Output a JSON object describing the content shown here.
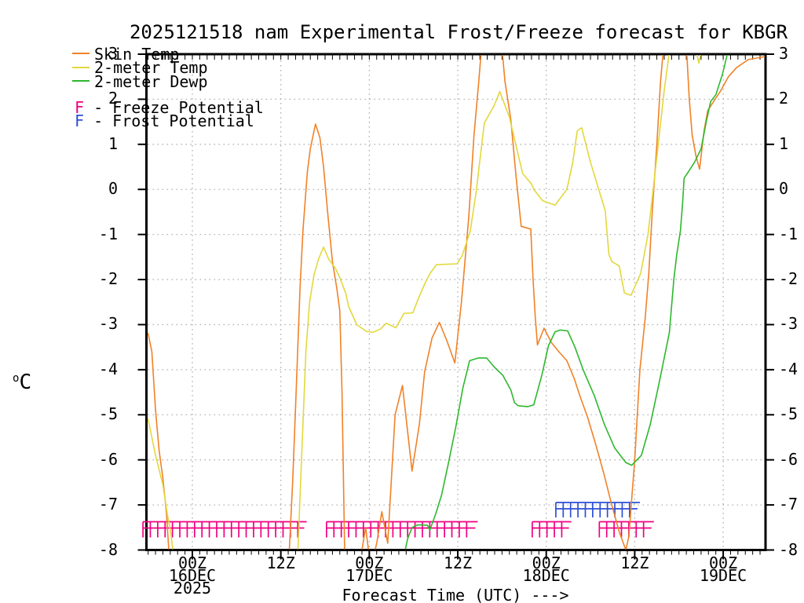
{
  "title": "2025121518 nam Experimental Frost/Freeze forecast for KBGR",
  "y_axis": {
    "unit_sup": "o",
    "unit_main": "C",
    "ticks": [
      3,
      2,
      1,
      0,
      -1,
      -2,
      -3,
      -4,
      -5,
      -6,
      -7,
      -8
    ]
  },
  "x_axis": {
    "label": "Forecast Time (UTC) --->",
    "ticks": [
      {
        "hours": 0,
        "lines": [
          "00Z",
          "16DEC",
          "2025"
        ]
      },
      {
        "hours": 12,
        "lines": [
          "12Z"
        ]
      },
      {
        "hours": 24,
        "lines": [
          "00Z",
          "17DEC"
        ]
      },
      {
        "hours": 36,
        "lines": [
          "12Z"
        ]
      },
      {
        "hours": 48,
        "lines": [
          "00Z",
          "18DEC"
        ]
      },
      {
        "hours": 60,
        "lines": [
          "12Z"
        ]
      },
      {
        "hours": 72,
        "lines": [
          "00Z",
          "19DEC"
        ]
      }
    ]
  },
  "legend": {
    "line_items": [
      {
        "key": "skin",
        "label": "Skin Temp"
      },
      {
        "key": "temp2m",
        "label": "2-meter Temp"
      },
      {
        "key": "dewp",
        "label": "2-meter Dewp"
      }
    ],
    "marker_items": [
      {
        "key": "freeze",
        "marker": "F",
        "label": " - Freeze Potential"
      },
      {
        "key": "frost",
        "marker": "F",
        "label": " - Frost Potential"
      }
    ]
  },
  "colors": {
    "skin": "#f08228",
    "temp2m": "#e2d83c",
    "dewp": "#2eb82e",
    "freeze": "#f00082",
    "frost": "#2e4fd6",
    "grid": "#b2b2b2",
    "frame": "#000000"
  },
  "chart_data": {
    "type": "line",
    "title": "2025121518 nam Experimental Frost/Freeze forecast for KBGR",
    "xlabel": "Forecast Time (UTC) --->",
    "ylabel": "oC",
    "x_unit": "hours after 00Z 16DEC2025",
    "x_range": [
      -6.2,
      77.7
    ],
    "y_range": [
      -8,
      3
    ],
    "grid": "dotted",
    "y_gridlines": [
      2,
      1,
      0,
      -1,
      -2,
      -3,
      -4,
      -5,
      -6,
      -7
    ],
    "x_gridlines_hours": [
      0,
      12,
      24,
      36,
      48,
      60,
      72
    ],
    "series": [
      {
        "name": "Skin Temp",
        "color_key": "skin",
        "points": [
          [
            -6,
            -3.2
          ],
          [
            -5.5,
            -3.6
          ],
          [
            -5,
            -4.9
          ],
          [
            -4.5,
            -5.8
          ],
          [
            -4,
            -6.4
          ],
          [
            -3.5,
            -7.2
          ],
          [
            -3,
            -8.5
          ],
          [
            13,
            -8.5
          ],
          [
            13.6,
            -6.5
          ],
          [
            14,
            -4.8
          ],
          [
            14.6,
            -2.2
          ],
          [
            15,
            -0.9
          ],
          [
            15.6,
            0.4
          ],
          [
            16,
            0.9
          ],
          [
            16.7,
            1.45
          ],
          [
            17.3,
            1.15
          ],
          [
            17.8,
            0.5
          ],
          [
            18.4,
            -0.6
          ],
          [
            19,
            -1.6
          ],
          [
            19.6,
            -2.2
          ],
          [
            20,
            -2.7
          ],
          [
            20.3,
            -4.5
          ],
          [
            20.7,
            -8.5
          ],
          [
            22.5,
            -8.5
          ],
          [
            23.5,
            -7.5
          ],
          [
            24.2,
            -8.4
          ],
          [
            25,
            -7.85
          ],
          [
            25.7,
            -7.15
          ],
          [
            26.5,
            -7.85
          ],
          [
            27.5,
            -5.0
          ],
          [
            28.5,
            -4.35
          ],
          [
            29.8,
            -6.25
          ],
          [
            30.8,
            -5.2
          ],
          [
            31.5,
            -4.05
          ],
          [
            32.5,
            -3.3
          ],
          [
            33.5,
            -2.95
          ],
          [
            34.5,
            -3.35
          ],
          [
            35.6,
            -3.85
          ],
          [
            36.5,
            -2.5
          ],
          [
            37.5,
            -0.6
          ],
          [
            38.2,
            1.2
          ],
          [
            38.8,
            2.3
          ],
          [
            39.4,
            3.5
          ],
          [
            41.8,
            3.5
          ],
          [
            42.4,
            2.4
          ],
          [
            43.2,
            1.55
          ],
          [
            43.9,
            0.3
          ],
          [
            44.6,
            -0.82
          ],
          [
            45.9,
            -0.88
          ],
          [
            46.2,
            -1.95
          ],
          [
            46.5,
            -2.8
          ],
          [
            46.8,
            -3.45
          ],
          [
            47.7,
            -3.08
          ],
          [
            48.7,
            -3.4
          ],
          [
            49.7,
            -3.6
          ],
          [
            50.8,
            -3.8
          ],
          [
            51.8,
            -4.2
          ],
          [
            52.6,
            -4.6
          ],
          [
            53.6,
            -5.05
          ],
          [
            54.7,
            -5.65
          ],
          [
            55.8,
            -6.3
          ],
          [
            56.8,
            -6.95
          ],
          [
            57.9,
            -7.6
          ],
          [
            58.8,
            -8.0
          ],
          [
            59.2,
            -7.7
          ],
          [
            60,
            -6.0
          ],
          [
            60.7,
            -4.0
          ],
          [
            61.4,
            -2.9
          ],
          [
            61.9,
            -1.9
          ],
          [
            62.4,
            -0.45
          ],
          [
            63,
            1.0
          ],
          [
            63.5,
            2.4
          ],
          [
            64.1,
            3.5
          ],
          [
            66.9,
            3.5
          ],
          [
            67.4,
            2.0
          ],
          [
            67.8,
            1.2
          ],
          [
            68.3,
            0.75
          ],
          [
            68.8,
            0.45
          ],
          [
            69.4,
            1.3
          ],
          [
            69.9,
            1.75
          ],
          [
            70.9,
            2.0
          ],
          [
            71.7,
            2.2
          ],
          [
            72.7,
            2.5
          ],
          [
            73.8,
            2.7
          ],
          [
            75.4,
            2.88
          ],
          [
            77.7,
            2.95
          ]
        ]
      },
      {
        "name": "2-meter Temp",
        "color_key": "temp2m",
        "points": [
          [
            -6,
            -5.1
          ],
          [
            -5,
            -5.9
          ],
          [
            -4,
            -6.55
          ],
          [
            -3.4,
            -7.2
          ],
          [
            -2.9,
            -7.65
          ],
          [
            -2.3,
            -8.5
          ],
          [
            14.2,
            -8.5
          ],
          [
            14.8,
            -6.0
          ],
          [
            15.4,
            -3.6
          ],
          [
            15.9,
            -2.5
          ],
          [
            16.5,
            -1.9
          ],
          [
            17.1,
            -1.55
          ],
          [
            17.8,
            -1.28
          ],
          [
            18.5,
            -1.55
          ],
          [
            19.4,
            -1.75
          ],
          [
            20,
            -1.96
          ],
          [
            20.8,
            -2.3
          ],
          [
            21.2,
            -2.6
          ],
          [
            22.3,
            -3.0
          ],
          [
            23.6,
            -3.15
          ],
          [
            24.5,
            -3.17
          ],
          [
            25.5,
            -3.1
          ],
          [
            26.3,
            -2.97
          ],
          [
            27.6,
            -3.07
          ],
          [
            28.7,
            -2.75
          ],
          [
            29.9,
            -2.74
          ],
          [
            30.7,
            -2.4
          ],
          [
            31.5,
            -2.1
          ],
          [
            32.3,
            -1.85
          ],
          [
            33.1,
            -1.67
          ],
          [
            35.9,
            -1.65
          ],
          [
            36.6,
            -1.47
          ],
          [
            37.7,
            -0.92
          ],
          [
            38.5,
            -0.05
          ],
          [
            39.6,
            1.47
          ],
          [
            40.9,
            1.85
          ],
          [
            41.7,
            2.17
          ],
          [
            43,
            1.6
          ],
          [
            44,
            0.9
          ],
          [
            44.8,
            0.35
          ],
          [
            46,
            0.12
          ],
          [
            46.3,
            0.0
          ],
          [
            47.5,
            -0.25
          ],
          [
            49.2,
            -0.35
          ],
          [
            50.8,
            0.0
          ],
          [
            51.6,
            0.6
          ],
          [
            52.2,
            1.3
          ],
          [
            52.8,
            1.37
          ],
          [
            54,
            0.6
          ],
          [
            55,
            0.06
          ],
          [
            56,
            -0.47
          ],
          [
            56.5,
            -1.44
          ],
          [
            56.9,
            -1.6
          ],
          [
            57.9,
            -1.7
          ],
          [
            58.6,
            -2.3
          ],
          [
            59.5,
            -2.35
          ],
          [
            60.8,
            -1.87
          ],
          [
            61.8,
            -1.0
          ],
          [
            62.5,
            0.0
          ],
          [
            63.2,
            1.0
          ],
          [
            64,
            2.2
          ],
          [
            64.9,
            3.3
          ],
          [
            68,
            3.3
          ],
          [
            68.7,
            2.8
          ],
          [
            69.3,
            3.3
          ]
        ]
      },
      {
        "name": "2-meter Dewp",
        "color_key": "dewp",
        "points": [
          [
            28.6,
            -8.2
          ],
          [
            29.2,
            -7.75
          ],
          [
            29.8,
            -7.5
          ],
          [
            30.6,
            -7.44
          ],
          [
            31.9,
            -7.45
          ],
          [
            32.2,
            -7.56
          ],
          [
            33,
            -7.2
          ],
          [
            33.8,
            -6.78
          ],
          [
            34.7,
            -6.1
          ],
          [
            35.7,
            -5.3
          ],
          [
            36.7,
            -4.4
          ],
          [
            37.6,
            -3.8
          ],
          [
            38.8,
            -3.74
          ],
          [
            39.9,
            -3.74
          ],
          [
            41,
            -3.95
          ],
          [
            42.1,
            -4.12
          ],
          [
            43.2,
            -4.45
          ],
          [
            43.7,
            -4.73
          ],
          [
            44.2,
            -4.8
          ],
          [
            45.5,
            -4.82
          ],
          [
            46.3,
            -4.78
          ],
          [
            47.4,
            -4.12
          ],
          [
            48.3,
            -3.47
          ],
          [
            49.2,
            -3.16
          ],
          [
            49.9,
            -3.12
          ],
          [
            50.9,
            -3.14
          ],
          [
            51.9,
            -3.5
          ],
          [
            53,
            -4.0
          ],
          [
            54.5,
            -4.57
          ],
          [
            55.9,
            -5.22
          ],
          [
            57.3,
            -5.74
          ],
          [
            58.8,
            -6.06
          ],
          [
            59.6,
            -6.12
          ],
          [
            60.9,
            -5.9
          ],
          [
            62.1,
            -5.22
          ],
          [
            63.3,
            -4.3
          ],
          [
            64.7,
            -3.18
          ],
          [
            65.3,
            -2.0
          ],
          [
            65.7,
            -1.45
          ],
          [
            66.2,
            -0.92
          ],
          [
            66.5,
            -0.3
          ],
          [
            66.7,
            0.25
          ],
          [
            67.4,
            0.42
          ],
          [
            68.1,
            0.6
          ],
          [
            69,
            0.9
          ],
          [
            69.7,
            1.5
          ],
          [
            70.3,
            1.95
          ],
          [
            71,
            2.1
          ],
          [
            71.9,
            2.55
          ],
          [
            72.7,
            3.1
          ]
        ]
      }
    ],
    "freeze_potential_segments_hours": [
      [
        -6.7,
        15.5
      ],
      [
        18.2,
        38.7
      ],
      [
        46.1,
        51.4
      ],
      [
        55.2,
        62.6
      ]
    ],
    "frost_potential_segments_hours": [
      [
        49.3,
        60.7
      ]
    ]
  }
}
